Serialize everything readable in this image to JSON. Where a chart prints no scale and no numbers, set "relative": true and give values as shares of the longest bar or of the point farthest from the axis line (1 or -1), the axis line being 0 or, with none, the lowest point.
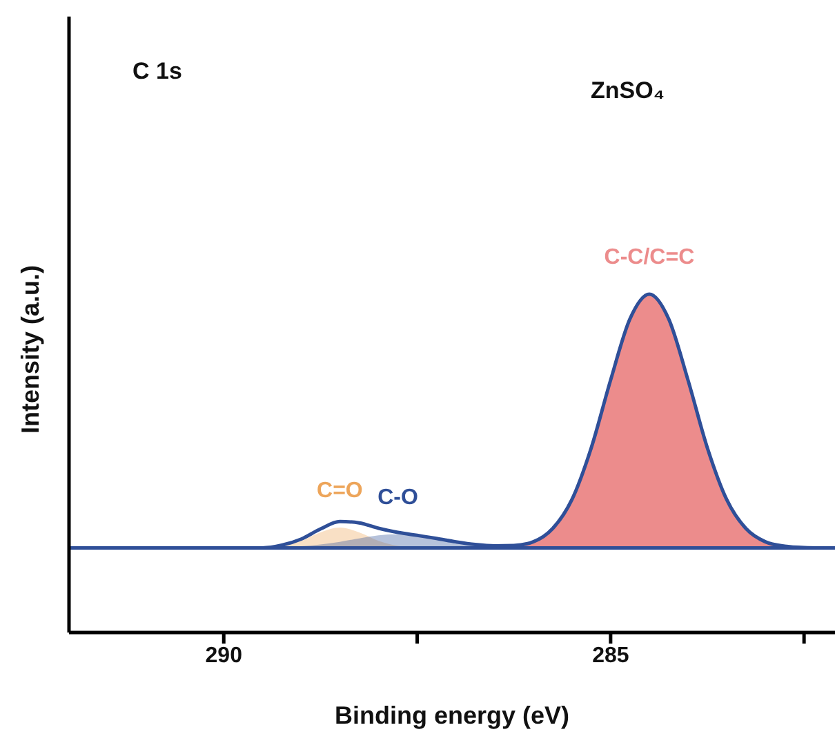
{
  "chart_data": {
    "type": "area",
    "relative": true,
    "xlabel": "Binding energy (eV)",
    "ylabel": "Intensity (a.u.)",
    "annotations": [
      "C 1s",
      "ZnSO₄"
    ],
    "xlim": [
      292,
      282.1
    ],
    "xticks": [
      290,
      {
        "value": 287.5,
        "label": null
      },
      285,
      {
        "value": 282.5,
        "label": null
      }
    ],
    "marker": "none",
    "series": [
      {
        "name": "C-C/C=C",
        "color": "#ec8c8c",
        "x": [
          286.75,
          286.5,
          286.25,
          286,
          285.75,
          285.5,
          285.25,
          285,
          284.75,
          284.5,
          284.25,
          284,
          283.75,
          283.5,
          283.25,
          283,
          282.75,
          282.5,
          282.25
        ],
        "values": [
          0.25,
          0.251,
          0.255,
          0.268,
          0.307,
          0.393,
          0.546,
          0.746,
          0.927,
          1,
          0.927,
          0.746,
          0.546,
          0.393,
          0.307,
          0.268,
          0.255,
          0.251,
          0.25
        ]
      },
      {
        "name": "C=O",
        "color": "#eda55a",
        "x": [
          289.5,
          289.25,
          289,
          288.75,
          288.5,
          288.25,
          288,
          287.75,
          287.5
        ],
        "values": [
          0.25,
          0.256,
          0.271,
          0.296,
          0.31,
          0.296,
          0.271,
          0.256,
          0.25
        ]
      },
      {
        "name": "C-O",
        "color": "#2f4f98",
        "x": [
          289.5,
          289.25,
          289,
          288.75,
          288.5,
          288.25,
          288,
          287.75,
          287.5,
          287.25,
          287,
          286.75,
          286.5,
          286.25,
          286
        ],
        "values": [
          0.25,
          0.252,
          0.255,
          0.26,
          0.268,
          0.278,
          0.287,
          0.29,
          0.287,
          0.278,
          0.268,
          0.26,
          0.255,
          0.252,
          0.25
        ]
      },
      {
        "type": "line",
        "color": "#2f4f98",
        "x": [
          292,
          282.1
        ],
        "values": [
          0.25,
          0.25
        ]
      },
      {
        "type": "line",
        "color": "#2f4f98",
        "x": [
          292,
          291.75,
          291.5,
          291.25,
          291,
          290.75,
          290.5,
          290.25,
          290,
          289.75,
          289.5,
          289.25,
          289,
          288.75,
          288.5,
          288.25,
          288,
          287.75,
          287.5,
          287.25,
          287,
          286.75,
          286.5,
          286.25,
          286,
          285.75,
          285.5,
          285.25,
          285,
          284.75,
          284.5,
          284.25,
          284,
          283.75,
          283.5,
          283.25,
          283,
          282.75,
          282.5,
          282.25
        ],
        "values": [
          0.25,
          0.25,
          0.25,
          0.25,
          0.25,
          0.25,
          0.25,
          0.25,
          0.25,
          0.25,
          0.25,
          0.258,
          0.276,
          0.306,
          0.328,
          0.324,
          0.308,
          0.296,
          0.287,
          0.278,
          0.268,
          0.26,
          0.256,
          0.257,
          0.268,
          0.307,
          0.393,
          0.546,
          0.746,
          0.927,
          1,
          0.927,
          0.746,
          0.546,
          0.393,
          0.307,
          0.268,
          0.255,
          0.251,
          0.25
        ]
      }
    ]
  }
}
